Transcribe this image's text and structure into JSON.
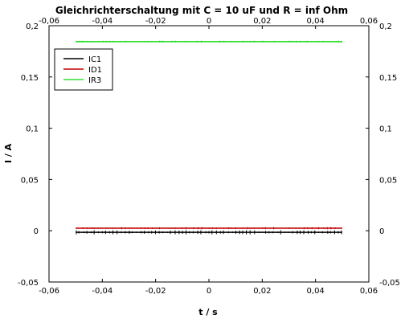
{
  "chart_data": {
    "type": "line",
    "title": "Gleichrichterschaltung mit C = 10 uF und R = inf Ohm",
    "xlabel": "t / s",
    "ylabel": "I / A",
    "xlim": [
      -0.06,
      0.06
    ],
    "ylim": [
      -0.05,
      0.2
    ],
    "x_ticks": [
      -0.06,
      -0.04,
      -0.02,
      0,
      0.02,
      0.04,
      0.06
    ],
    "x_tick_labels": [
      "-0,06",
      "-0,04",
      "-0,02",
      "0",
      "0,02",
      "0,04",
      "0,06"
    ],
    "y_ticks": [
      -0.05,
      0,
      0.05,
      0.1,
      0.15,
      0.2
    ],
    "y_tick_labels": [
      "-0,05",
      "0",
      "0,05",
      "0,1",
      "0,15",
      "0,2"
    ],
    "ticks_on_all_sides": true,
    "grid": false,
    "legend_position": "top-left",
    "series": [
      {
        "name": "IC1",
        "color": "#000000",
        "x": [
          -0.05,
          0.05
        ],
        "y": [
          -0.0015,
          -0.0015
        ],
        "noise": 0.0015
      },
      {
        "name": "ID1",
        "color": "#c00000",
        "x": [
          -0.05,
          0.05
        ],
        "y": [
          0.0025,
          0.0025
        ],
        "noise": 0.0008
      },
      {
        "name": "IR3",
        "color": "#33dd33",
        "x": [
          -0.05,
          0.05
        ],
        "y": [
          0.1845,
          0.1845
        ],
        "noise": 0.0007
      }
    ]
  }
}
